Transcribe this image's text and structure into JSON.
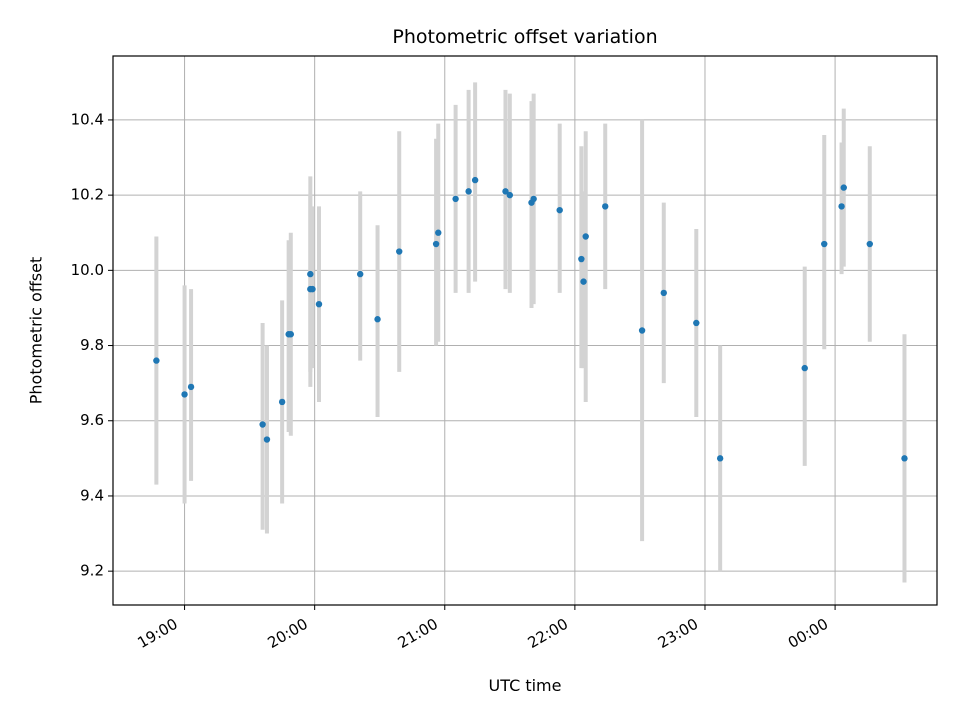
{
  "chart_data": {
    "type": "scatter",
    "title": "Photometric offset variation",
    "xlabel": "UTC time",
    "ylabel": "Photometric offset",
    "xlim": [
      "2023-01-01T18:27",
      "2023-01-02T00:47"
    ],
    "ylim": [
      9.11,
      10.57
    ],
    "x_ticks": [
      {
        "time": "2023-01-01T19:00",
        "label": "19:00"
      },
      {
        "time": "2023-01-01T20:00",
        "label": "20:00"
      },
      {
        "time": "2023-01-01T21:00",
        "label": "21:00"
      },
      {
        "time": "2023-01-01T22:00",
        "label": "22:00"
      },
      {
        "time": "2023-01-01T23:00",
        "label": "23:00"
      },
      {
        "time": "2023-01-02T00:00",
        "label": "00:00"
      }
    ],
    "y_ticks": [
      9.2,
      9.4,
      9.6,
      9.8,
      10.0,
      10.2,
      10.4
    ],
    "y_tick_labels": [
      "9.2",
      "9.4",
      "9.6",
      "9.8",
      "10.0",
      "10.2",
      "10.4"
    ],
    "grid": true,
    "colors": {
      "point": "#1f77b4",
      "errorbar": "#d3d3d3",
      "grid": "#b0b0b0"
    },
    "points": [
      {
        "t": "2023-01-01T18:47",
        "y": 9.76,
        "lo": 9.43,
        "hi": 10.09
      },
      {
        "t": "2023-01-01T19:00",
        "y": 9.67,
        "lo": 9.38,
        "hi": 9.96
      },
      {
        "t": "2023-01-01T19:03",
        "y": 9.69,
        "lo": 9.44,
        "hi": 9.95
      },
      {
        "t": "2023-01-01T19:36",
        "y": 9.59,
        "lo": 9.31,
        "hi": 9.86
      },
      {
        "t": "2023-01-01T19:38",
        "y": 9.55,
        "lo": 9.3,
        "hi": 9.8
      },
      {
        "t": "2023-01-01T19:45",
        "y": 9.65,
        "lo": 9.38,
        "hi": 9.92
      },
      {
        "t": "2023-01-01T19:48",
        "y": 9.83,
        "lo": 9.57,
        "hi": 10.08
      },
      {
        "t": "2023-01-01T19:49",
        "y": 9.83,
        "lo": 9.56,
        "hi": 10.1
      },
      {
        "t": "2023-01-01T19:58",
        "y": 9.99,
        "lo": 9.73,
        "hi": 10.25
      },
      {
        "t": "2023-01-01T19:58",
        "y": 9.95,
        "lo": 9.69,
        "hi": 10.2
      },
      {
        "t": "2023-01-01T19:59",
        "y": 9.95,
        "lo": 9.74,
        "hi": 10.17
      },
      {
        "t": "2023-01-01T20:02",
        "y": 9.91,
        "lo": 9.65,
        "hi": 10.17
      },
      {
        "t": "2023-01-01T20:21",
        "y": 9.99,
        "lo": 9.76,
        "hi": 10.21
      },
      {
        "t": "2023-01-01T20:29",
        "y": 9.87,
        "lo": 9.61,
        "hi": 10.12
      },
      {
        "t": "2023-01-01T20:39",
        "y": 10.05,
        "lo": 9.73,
        "hi": 10.37
      },
      {
        "t": "2023-01-01T20:56",
        "y": 10.07,
        "lo": 9.8,
        "hi": 10.35
      },
      {
        "t": "2023-01-01T20:57",
        "y": 10.1,
        "lo": 9.81,
        "hi": 10.39
      },
      {
        "t": "2023-01-01T21:05",
        "y": 10.19,
        "lo": 9.94,
        "hi": 10.44
      },
      {
        "t": "2023-01-01T21:11",
        "y": 10.21,
        "lo": 9.94,
        "hi": 10.48
      },
      {
        "t": "2023-01-01T21:14",
        "y": 10.24,
        "lo": 9.97,
        "hi": 10.5
      },
      {
        "t": "2023-01-01T21:28",
        "y": 10.21,
        "lo": 9.95,
        "hi": 10.48
      },
      {
        "t": "2023-01-01T21:30",
        "y": 10.2,
        "lo": 9.94,
        "hi": 10.47
      },
      {
        "t": "2023-01-01T21:40",
        "y": 10.18,
        "lo": 9.9,
        "hi": 10.45
      },
      {
        "t": "2023-01-01T21:41",
        "y": 10.19,
        "lo": 9.91,
        "hi": 10.47
      },
      {
        "t": "2023-01-01T21:53",
        "y": 10.16,
        "lo": 9.94,
        "hi": 10.39
      },
      {
        "t": "2023-01-01T22:03",
        "y": 10.03,
        "lo": 9.74,
        "hi": 10.33
      },
      {
        "t": "2023-01-01T22:04",
        "y": 9.97,
        "lo": 9.74,
        "hi": 10.21
      },
      {
        "t": "2023-01-01T22:05",
        "y": 10.09,
        "lo": 9.65,
        "hi": 10.37
      },
      {
        "t": "2023-01-01T22:14",
        "y": 10.17,
        "lo": 9.95,
        "hi": 10.39
      },
      {
        "t": "2023-01-01T22:31",
        "y": 9.84,
        "lo": 9.28,
        "hi": 10.4
      },
      {
        "t": "2023-01-01T22:41",
        "y": 9.94,
        "lo": 9.7,
        "hi": 10.18
      },
      {
        "t": "2023-01-01T22:56",
        "y": 9.86,
        "lo": 9.61,
        "hi": 10.11
      },
      {
        "t": "2023-01-01T23:07",
        "y": 9.5,
        "lo": 9.2,
        "hi": 9.8
      },
      {
        "t": "2023-01-01T23:46",
        "y": 9.74,
        "lo": 9.48,
        "hi": 10.01
      },
      {
        "t": "2023-01-01T23:55",
        "y": 10.07,
        "lo": 9.79,
        "hi": 10.36
      },
      {
        "t": "2023-01-02T00:03",
        "y": 10.17,
        "lo": 9.99,
        "hi": 10.34
      },
      {
        "t": "2023-01-02T00:04",
        "y": 10.22,
        "lo": 10.01,
        "hi": 10.43
      },
      {
        "t": "2023-01-02T00:16",
        "y": 10.07,
        "lo": 9.81,
        "hi": 10.33
      },
      {
        "t": "2023-01-02T00:32",
        "y": 9.5,
        "lo": 9.17,
        "hi": 9.83
      }
    ]
  }
}
